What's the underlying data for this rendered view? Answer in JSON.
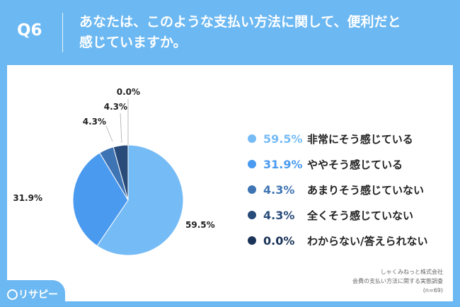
{
  "header": {
    "question_number": "Q6",
    "title_line1": "あなたは、このような支払い方法に関して、便利だと",
    "title_line2": "感じていますか。"
  },
  "brand": {
    "name": "リサピー"
  },
  "footer": {
    "line1": "しゃくみねっと株式会社",
    "line2": "会費の支払い方法に関する実態調査",
    "line3": "(n=69)"
  },
  "colors": {
    "header_bg": "#6cb8f2",
    "slice1": "#75bbf6",
    "slice2": "#4a9aef",
    "slice3": "#3f74b4",
    "slice4": "#284b7a",
    "slice5": "#1a3358"
  },
  "chart_data": {
    "type": "pie",
    "categories": [
      "非常にそう感じている",
      "ややそう感じている",
      "あまりそう感じていない",
      "全くそう感じていない",
      "わからない/答えられない"
    ],
    "values": [
      59.5,
      31.9,
      4.3,
      4.3,
      0.0
    ],
    "labels": [
      "59.5%",
      "31.9%",
      "4.3%",
      "4.3%",
      "0.0%"
    ],
    "legend_placement": "right"
  }
}
